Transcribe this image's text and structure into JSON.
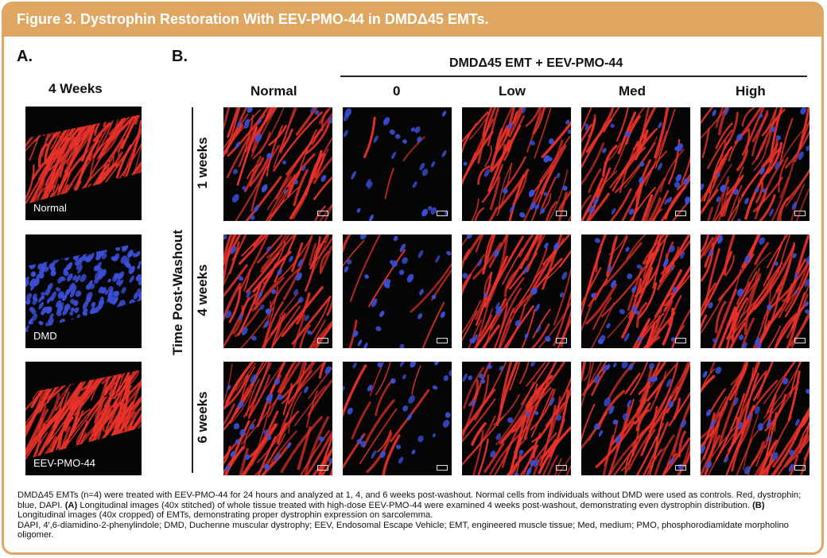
{
  "figure": {
    "title": "Figure 3. Dystrophin Restoration With EEV-PMO-44 in DMDΔ45 EMTs."
  },
  "panel_a": {
    "label": "A.",
    "title": "4 Weeks",
    "images": [
      {
        "label": "Normal"
      },
      {
        "label": "DMD"
      },
      {
        "label": "EEV-PMO-44"
      }
    ]
  },
  "panel_b": {
    "label": "B.",
    "group_header": "DMDΔ45 EMT + EEV-PMO-44",
    "columns": [
      "Normal",
      "0",
      "Low",
      "Med",
      "High"
    ],
    "axis_label": "Time Post-Washout",
    "rows": [
      "1 weeks",
      "4 weeks",
      "6 weeks"
    ]
  },
  "caption": {
    "p1": "DMDΔ45 EMTs (n=4) were treated with EEV-PMO-44 for 24 hours and analyzed at 1, 4, and 6 weeks post-washout. Normal cells from individuals without DMD were used as controls. Red, dystrophin; blue, DAPI. ",
    "a_label": "(A)",
    "p2": " Longitudinal images (40x stitched) of whole tissue treated with high-dose EEV-PMO-44 were examined 4 weeks post-washout, demonstrating even dystrophin distribution. ",
    "b_label": "(B)",
    "p3": " Longitudinal images (40x cropped) of EMTs, demonstrating proper dystrophin expression on sarcolemma.",
    "abbreviations": "DAPI, 4′,6-diamidino-2-phenylindole; DMD, Duchenne muscular dystrophy; EEV, Endosomal Escape Vehicle; EMT, engineered muscle tissue; Med, medium; PMO, phosphorodiamidate morpholino oligomer."
  },
  "colors": {
    "accent": "#dea660",
    "dystrophin": "#e8322a",
    "dapi": "#3b4fd8"
  }
}
